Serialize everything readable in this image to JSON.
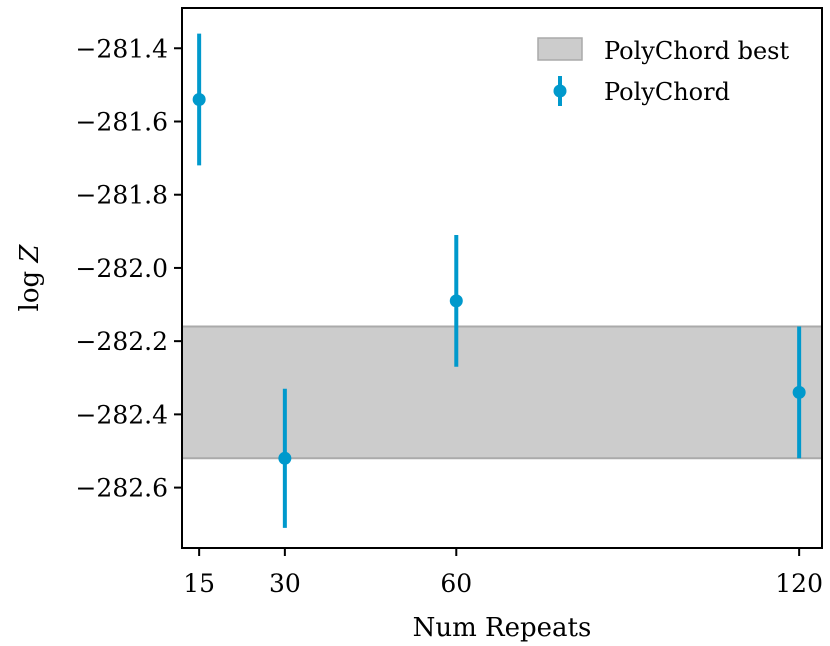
{
  "chart_data": {
    "type": "scatter",
    "xlabel": "Num Repeats",
    "ylabel": "log Z",
    "xlim": [
      12,
      124
    ],
    "ylim": [
      -282.765,
      -281.29
    ],
    "x_ticks": [
      15,
      30,
      60,
      120
    ],
    "y_ticks": [
      -281.4,
      -281.6,
      -281.8,
      -282.0,
      -282.2,
      -282.4,
      -282.6
    ],
    "y_tick_labels": [
      "−281.4",
      "−281.6",
      "−281.8",
      "−282.0",
      "−282.2",
      "−282.4",
      "−282.6"
    ],
    "grid": false,
    "legend_position": "top-right",
    "band": {
      "name": "PolyChord best",
      "y_low": -282.52,
      "y_high": -282.16,
      "color": "#cccccc",
      "edge_color": "#aaaaaa"
    },
    "series": [
      {
        "name": "PolyChord",
        "color": "#0099cc",
        "points": [
          {
            "x": 15,
            "y": -281.54,
            "y_low": -281.72,
            "y_high": -281.36
          },
          {
            "x": 30,
            "y": -282.52,
            "y_low": -282.71,
            "y_high": -282.33
          },
          {
            "x": 60,
            "y": -282.09,
            "y_low": -282.27,
            "y_high": -281.91
          },
          {
            "x": 120,
            "y": -282.34,
            "y_low": -282.52,
            "y_high": -282.16
          }
        ]
      }
    ]
  }
}
